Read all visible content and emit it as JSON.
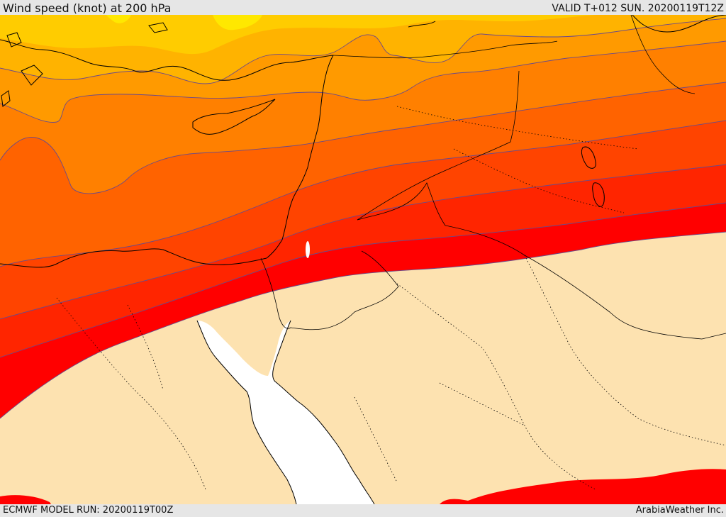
{
  "header": {
    "title": "Wind speed (knot) at 200 hPa",
    "valid_time": "VALID T+012 SUN. 20200119T12Z"
  },
  "footer": {
    "model_run": "ECMWF MODEL RUN: 20200119T00Z",
    "credit": "ArabiaWeather Inc."
  },
  "map": {
    "field": "wind speed at 200 hPa",
    "colors": {
      "calm": "#fde2b0",
      "band_1": "#ff0000",
      "band_2": "#ff2500",
      "band_3": "#ff4400",
      "band_4": "#ff6300",
      "band_5": "#ff8000",
      "band_6": "#ff9a00",
      "band_7": "#ffb300",
      "band_8": "#ffcc00",
      "band_9": "#ffe800",
      "sea": "#ffffff",
      "coastline": "#000000",
      "contour": "#6a4a8a"
    }
  }
}
